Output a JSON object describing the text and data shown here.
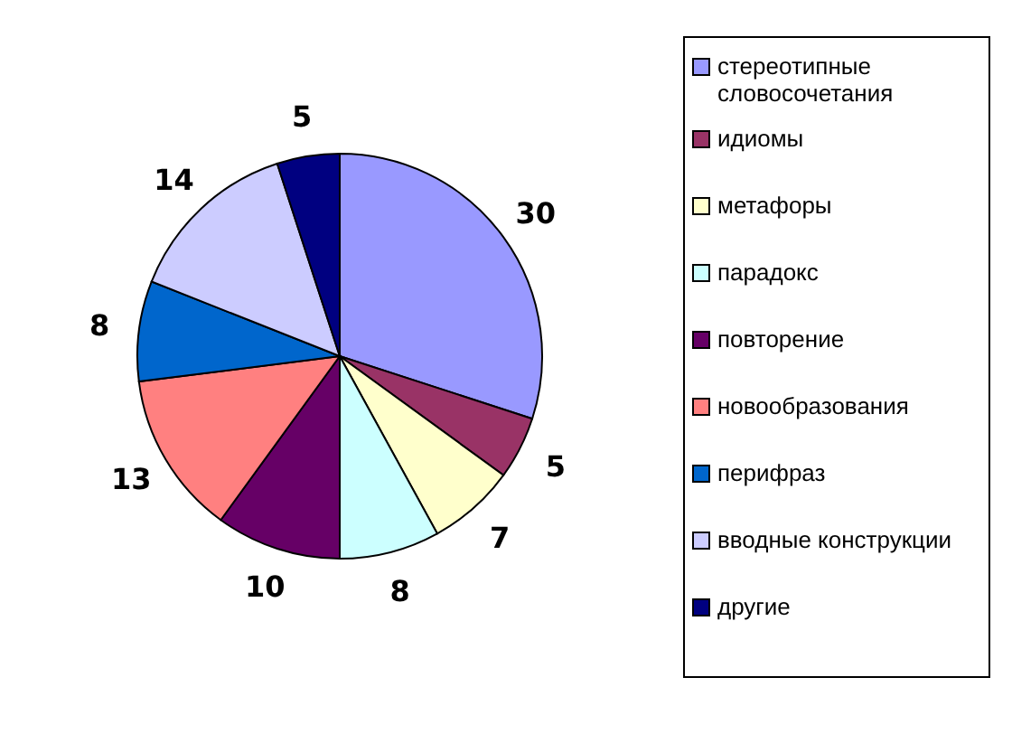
{
  "chart_data": {
    "type": "pie",
    "categories": [
      "стереотипные словосочетания",
      "идиомы",
      "метафоры",
      "парадокс",
      "повторение",
      "новообразования",
      "перифраз",
      "вводные конструкции",
      "другие"
    ],
    "values": [
      30,
      5,
      7,
      8,
      10,
      13,
      8,
      14,
      5
    ],
    "colors": [
      "#9999ff",
      "#993366",
      "#ffffcc",
      "#ccffff",
      "#660066",
      "#ff8080",
      "#0066cc",
      "#ccccff",
      "#000080"
    ],
    "data_labels": true,
    "legend": "right"
  }
}
